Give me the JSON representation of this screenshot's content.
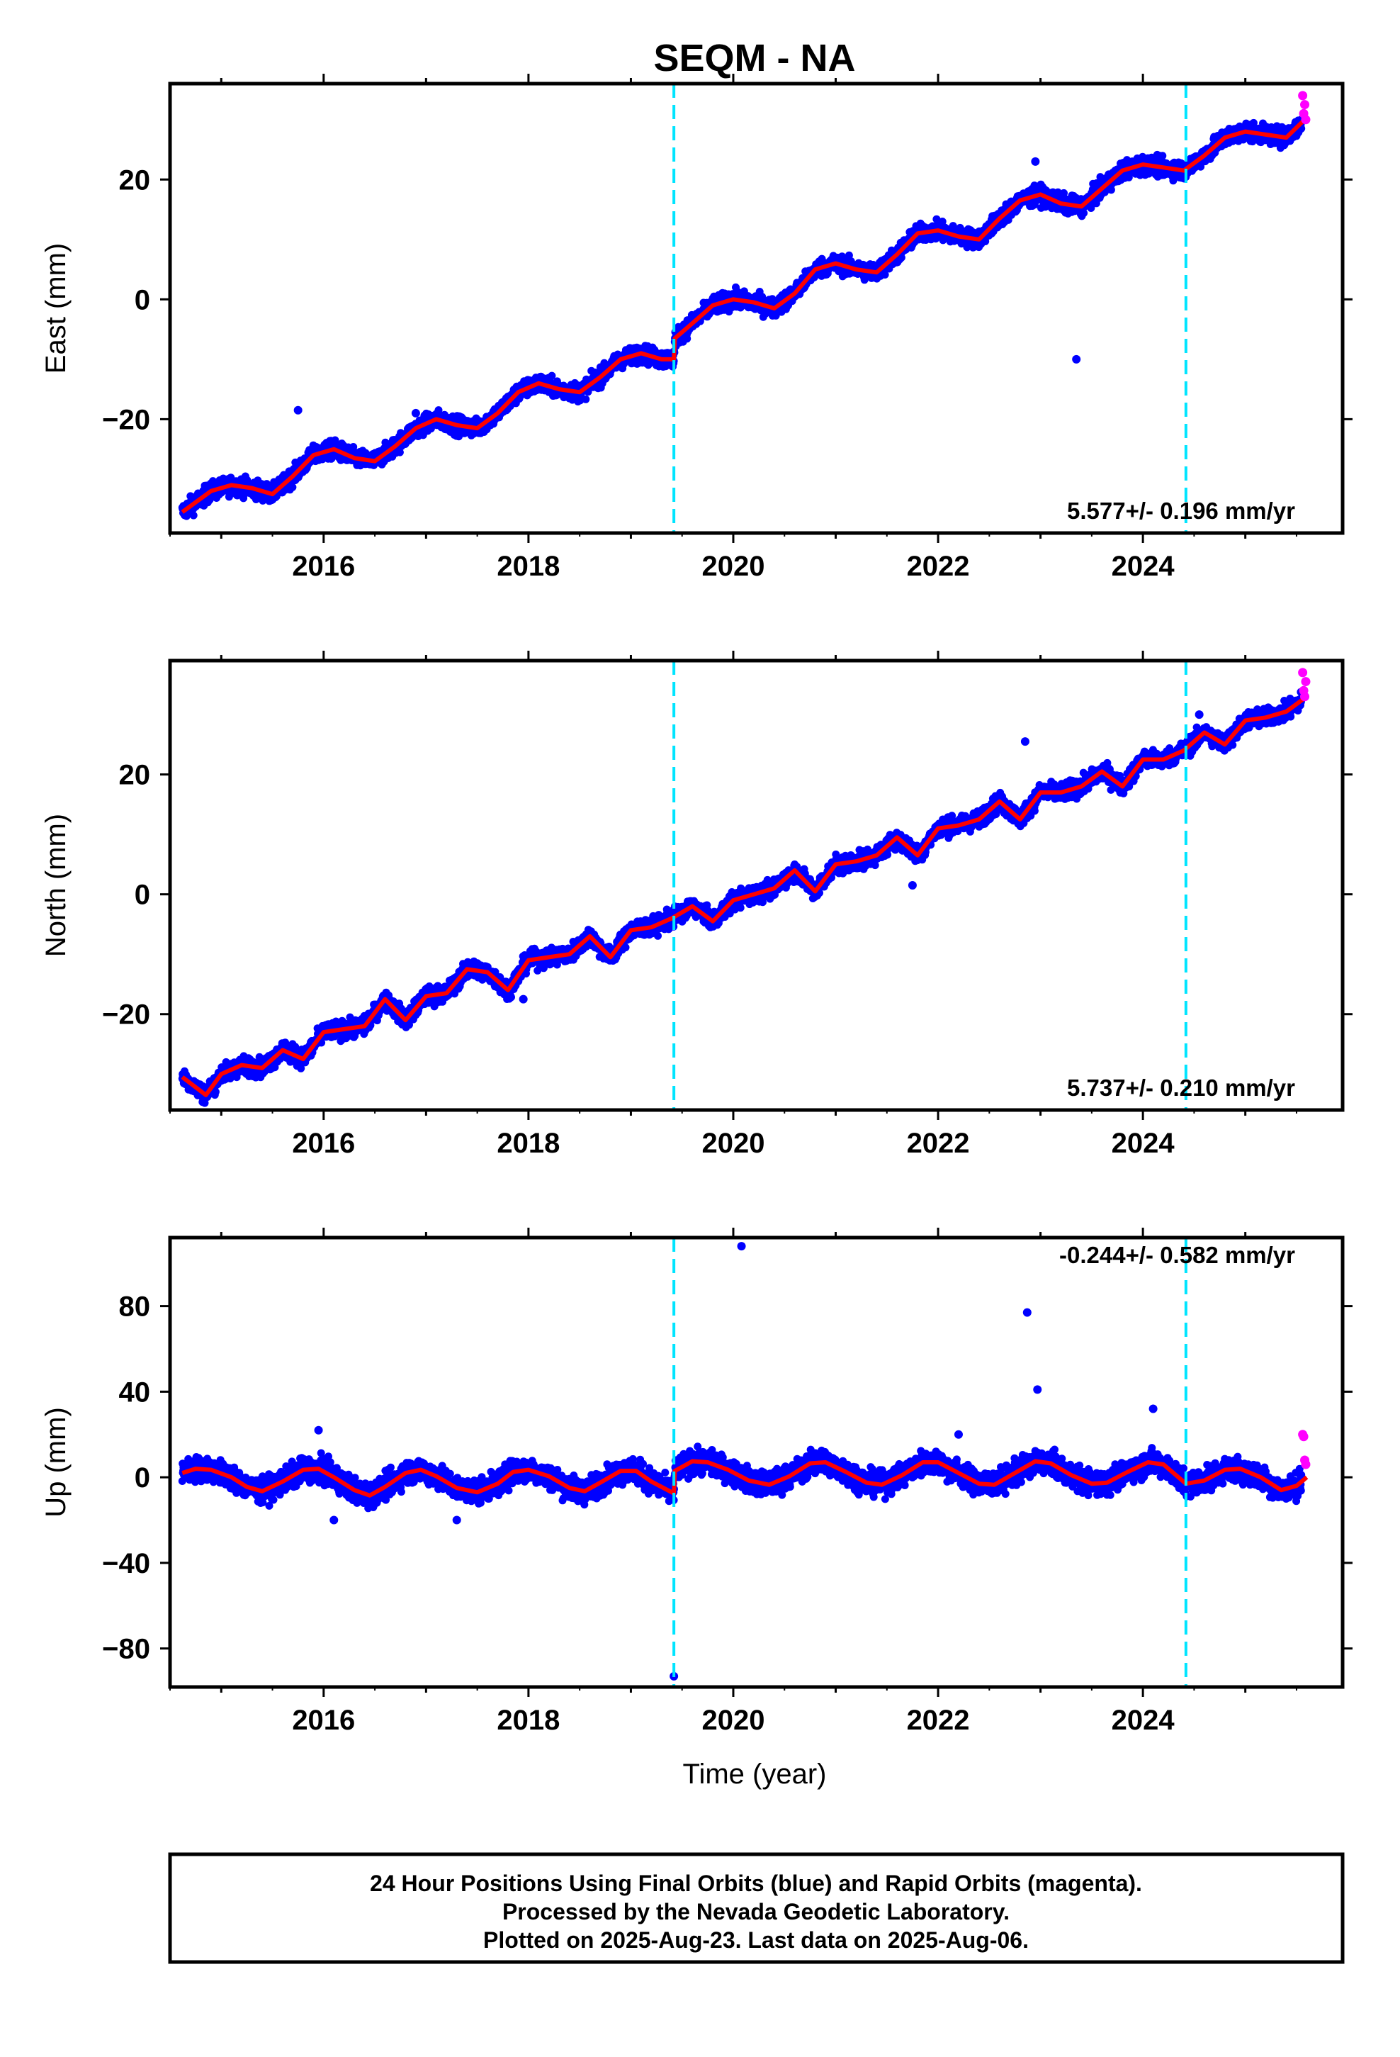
{
  "title": "SEQM - NA",
  "xlabel": "Time (year)",
  "footer": {
    "line1": "24 Hour Positions Using Final Orbits (blue) and Rapid Orbits (magenta).",
    "line2": "Processed by the Nevada Geodetic Laboratory.",
    "line3": "Plotted on 2025-Aug-23. Last data on 2025-Aug-06."
  },
  "colors": {
    "final": "#0000ff",
    "rapid": "#ff00ff",
    "model": "#ff0000",
    "event_line": "#00e5ff"
  },
  "chart_data": [
    {
      "type": "scatter",
      "component": "east",
      "ylabel": "East (mm)",
      "rate": "5.577+/- 0.196 mm/yr",
      "xlim": [
        2014.5,
        2025.95
      ],
      "ylim": [
        -39,
        36
      ],
      "xticks": [
        2016,
        2018,
        2020,
        2022,
        2024
      ],
      "yticks": [
        -20,
        0,
        20
      ],
      "events": [
        2019.42,
        2024.42
      ],
      "model": [
        [
          2014.62,
          -35.5
        ],
        [
          2014.9,
          -32.0
        ],
        [
          2015.1,
          -31.0
        ],
        [
          2015.3,
          -31.5
        ],
        [
          2015.5,
          -32.5
        ],
        [
          2015.7,
          -29.5
        ],
        [
          2015.9,
          -26.0
        ],
        [
          2016.1,
          -25.0
        ],
        [
          2016.3,
          -26.5
        ],
        [
          2016.5,
          -27.0
        ],
        [
          2016.7,
          -24.5
        ],
        [
          2016.9,
          -21.5
        ],
        [
          2017.1,
          -20.0
        ],
        [
          2017.3,
          -21.0
        ],
        [
          2017.5,
          -21.5
        ],
        [
          2017.7,
          -19.0
        ],
        [
          2017.9,
          -15.5
        ],
        [
          2018.1,
          -14.0
        ],
        [
          2018.3,
          -15.0
        ],
        [
          2018.5,
          -15.5
        ],
        [
          2018.7,
          -13.0
        ],
        [
          2018.9,
          -10.0
        ],
        [
          2019.1,
          -9.0
        ],
        [
          2019.3,
          -10.0
        ],
        [
          2019.42,
          -10.0
        ],
        [
          2019.43,
          -6.5
        ],
        [
          2019.6,
          -4.0
        ],
        [
          2019.8,
          -1.0
        ],
        [
          2020.0,
          0.0
        ],
        [
          2020.2,
          -0.5
        ],
        [
          2020.4,
          -1.5
        ],
        [
          2020.6,
          1.0
        ],
        [
          2020.8,
          5.0
        ],
        [
          2021.0,
          6.0
        ],
        [
          2021.2,
          5.0
        ],
        [
          2021.4,
          4.5
        ],
        [
          2021.6,
          7.5
        ],
        [
          2021.8,
          11.0
        ],
        [
          2022.0,
          11.5
        ],
        [
          2022.2,
          10.5
        ],
        [
          2022.4,
          10.0
        ],
        [
          2022.6,
          13.5
        ],
        [
          2022.8,
          16.5
        ],
        [
          2023.0,
          17.5
        ],
        [
          2023.2,
          16.0
        ],
        [
          2023.4,
          15.5
        ],
        [
          2023.6,
          18.5
        ],
        [
          2023.8,
          21.5
        ],
        [
          2024.0,
          22.5
        ],
        [
          2024.2,
          22.0
        ],
        [
          2024.4,
          21.5
        ],
        [
          2024.6,
          24.0
        ],
        [
          2024.8,
          27.0
        ],
        [
          2025.0,
          28.0
        ],
        [
          2025.2,
          27.5
        ],
        [
          2025.4,
          27.0
        ],
        [
          2025.55,
          29.5
        ],
        [
          2025.6,
          30.5
        ]
      ],
      "outliers": [
        [
          2015.75,
          -18.5
        ],
        [
          2016.9,
          -19.0
        ],
        [
          2023.35,
          -10.0
        ],
        [
          2022.95,
          23.0
        ]
      ],
      "rapid": [
        [
          2025.56,
          34.0
        ],
        [
          2025.57,
          31.0
        ],
        [
          2025.58,
          32.5
        ],
        [
          2025.59,
          30.0
        ]
      ]
    },
    {
      "type": "scatter",
      "component": "north",
      "ylabel": "North (mm)",
      "rate": "5.737+/- 0.210 mm/yr",
      "xlim": [
        2014.5,
        2025.95
      ],
      "ylim": [
        -36,
        39
      ],
      "xticks": [
        2016,
        2018,
        2020,
        2022,
        2024
      ],
      "yticks": [
        -20,
        0,
        20
      ],
      "events": [
        2019.42,
        2024.42
      ],
      "model": [
        [
          2014.62,
          -30.5
        ],
        [
          2014.85,
          -33.5
        ],
        [
          2015.0,
          -30.0
        ],
        [
          2015.2,
          -28.5
        ],
        [
          2015.4,
          -29.0
        ],
        [
          2015.6,
          -26.0
        ],
        [
          2015.8,
          -27.5
        ],
        [
          2016.0,
          -23.0
        ],
        [
          2016.2,
          -22.5
        ],
        [
          2016.4,
          -22.0
        ],
        [
          2016.6,
          -17.5
        ],
        [
          2016.8,
          -21.0
        ],
        [
          2017.0,
          -17.0
        ],
        [
          2017.2,
          -16.5
        ],
        [
          2017.4,
          -12.5
        ],
        [
          2017.6,
          -13.0
        ],
        [
          2017.8,
          -16.0
        ],
        [
          2018.0,
          -11.0
        ],
        [
          2018.2,
          -10.5
        ],
        [
          2018.4,
          -10.0
        ],
        [
          2018.6,
          -7.0
        ],
        [
          2018.8,
          -10.5
        ],
        [
          2019.0,
          -6.0
        ],
        [
          2019.2,
          -5.5
        ],
        [
          2019.4,
          -4.0
        ],
        [
          2019.6,
          -2.0
        ],
        [
          2019.8,
          -4.5
        ],
        [
          2020.0,
          -1.0
        ],
        [
          2020.2,
          0.0
        ],
        [
          2020.4,
          1.0
        ],
        [
          2020.6,
          4.0
        ],
        [
          2020.8,
          0.5
        ],
        [
          2021.0,
          5.0
        ],
        [
          2021.2,
          5.5
        ],
        [
          2021.4,
          6.5
        ],
        [
          2021.6,
          9.5
        ],
        [
          2021.8,
          6.5
        ],
        [
          2022.0,
          11.0
        ],
        [
          2022.2,
          11.5
        ],
        [
          2022.4,
          12.5
        ],
        [
          2022.6,
          15.5
        ],
        [
          2022.8,
          12.5
        ],
        [
          2023.0,
          17.0
        ],
        [
          2023.2,
          17.0
        ],
        [
          2023.4,
          18.0
        ],
        [
          2023.6,
          20.5
        ],
        [
          2023.8,
          18.0
        ],
        [
          2024.0,
          22.5
        ],
        [
          2024.2,
          22.5
        ],
        [
          2024.4,
          24.0
        ],
        [
          2024.6,
          27.0
        ],
        [
          2024.8,
          25.0
        ],
        [
          2025.0,
          29.0
        ],
        [
          2025.2,
          29.5
        ],
        [
          2025.4,
          30.5
        ],
        [
          2025.6,
          33.0
        ]
      ],
      "outliers": [
        [
          2022.85,
          25.5
        ],
        [
          2024.55,
          30.0
        ],
        [
          2017.95,
          -17.5
        ],
        [
          2021.75,
          1.5
        ]
      ],
      "rapid": [
        [
          2025.56,
          37.0
        ],
        [
          2025.57,
          34.0
        ],
        [
          2025.58,
          33.0
        ],
        [
          2025.59,
          35.5
        ]
      ]
    },
    {
      "type": "scatter",
      "component": "up",
      "ylabel": "Up (mm)",
      "rate": "-0.244+/- 0.582 mm/yr",
      "xlim": [
        2014.5,
        2025.95
      ],
      "ylim": [
        -98,
        112
      ],
      "xticks": [
        2016,
        2018,
        2020,
        2022,
        2024
      ],
      "yticks": [
        -80,
        -40,
        0,
        40,
        80
      ],
      "events": [
        2019.42,
        2024.42
      ],
      "model": [
        [
          2014.62,
          2.0
        ],
        [
          2014.75,
          4.0
        ],
        [
          2014.9,
          3.5
        ],
        [
          2015.1,
          0.0
        ],
        [
          2015.25,
          -4.5
        ],
        [
          2015.4,
          -6.5
        ],
        [
          2015.6,
          -2.0
        ],
        [
          2015.8,
          3.5
        ],
        [
          2015.95,
          4.0
        ],
        [
          2016.1,
          0.0
        ],
        [
          2016.3,
          -6.0
        ],
        [
          2016.45,
          -8.5
        ],
        [
          2016.6,
          -4.5
        ],
        [
          2016.8,
          2.0
        ],
        [
          2016.95,
          3.5
        ],
        [
          2017.1,
          0.5
        ],
        [
          2017.3,
          -5.0
        ],
        [
          2017.5,
          -7.0
        ],
        [
          2017.7,
          -3.0
        ],
        [
          2017.85,
          2.5
        ],
        [
          2018.0,
          3.5
        ],
        [
          2018.2,
          0.5
        ],
        [
          2018.4,
          -5.0
        ],
        [
          2018.55,
          -6.5
        ],
        [
          2018.7,
          -2.5
        ],
        [
          2018.9,
          3.0
        ],
        [
          2019.05,
          3.0
        ],
        [
          2019.2,
          -2.0
        ],
        [
          2019.42,
          -7.5
        ],
        [
          2019.43,
          3.0
        ],
        [
          2019.6,
          7.5
        ],
        [
          2019.75,
          7.0
        ],
        [
          2019.95,
          3.5
        ],
        [
          2020.15,
          -1.5
        ],
        [
          2020.35,
          -3.5
        ],
        [
          2020.55,
          0.5
        ],
        [
          2020.75,
          6.5
        ],
        [
          2020.9,
          7.0
        ],
        [
          2021.1,
          2.5
        ],
        [
          2021.3,
          -2.5
        ],
        [
          2021.45,
          -3.5
        ],
        [
          2021.65,
          1.0
        ],
        [
          2021.85,
          7.0
        ],
        [
          2022.0,
          7.0
        ],
        [
          2022.2,
          2.0
        ],
        [
          2022.4,
          -3.0
        ],
        [
          2022.55,
          -3.5
        ],
        [
          2022.75,
          2.0
        ],
        [
          2022.95,
          7.5
        ],
        [
          2023.1,
          6.5
        ],
        [
          2023.3,
          1.0
        ],
        [
          2023.5,
          -3.0
        ],
        [
          2023.65,
          -2.5
        ],
        [
          2023.85,
          2.5
        ],
        [
          2024.05,
          7.0
        ],
        [
          2024.2,
          6.0
        ],
        [
          2024.42,
          -3.0
        ],
        [
          2024.6,
          -1.5
        ],
        [
          2024.8,
          3.5
        ],
        [
          2024.95,
          4.0
        ],
        [
          2025.15,
          0.0
        ],
        [
          2025.35,
          -6.0
        ],
        [
          2025.5,
          -4.0
        ],
        [
          2025.6,
          0.0
        ]
      ],
      "outliers": [
        [
          2020.08,
          108
        ],
        [
          2022.87,
          77
        ],
        [
          2022.97,
          41
        ],
        [
          2024.1,
          32
        ],
        [
          2019.42,
          -93
        ],
        [
          2015.95,
          22
        ],
        [
          2022.2,
          20
        ],
        [
          2016.1,
          -20
        ],
        [
          2017.3,
          -20
        ]
      ],
      "rapid": [
        [
          2025.56,
          20.0
        ],
        [
          2025.57,
          19.0
        ],
        [
          2025.58,
          8.0
        ],
        [
          2025.59,
          6.0
        ]
      ]
    }
  ]
}
